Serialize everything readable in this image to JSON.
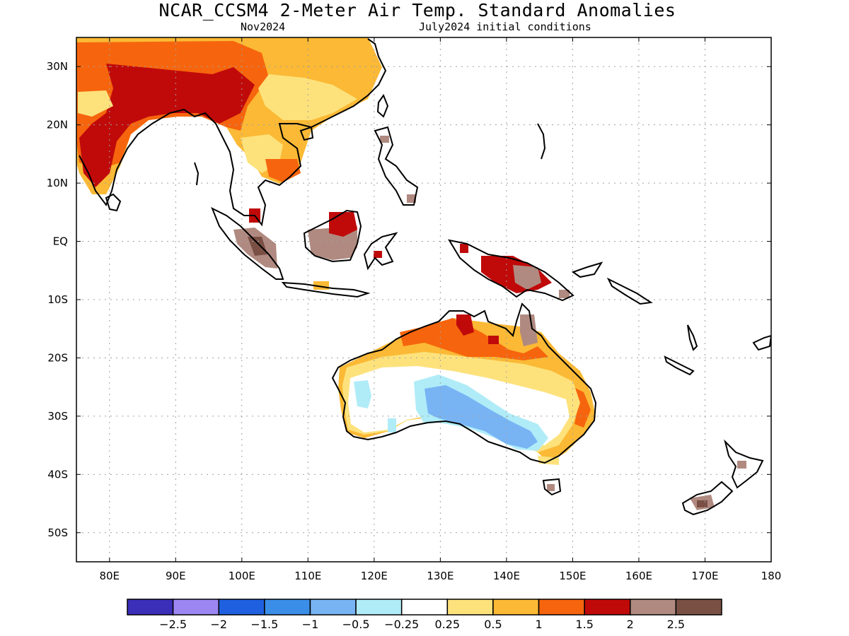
{
  "title": "NCAR_CCSM4 2-Meter Air Temp. Standard Anomalies",
  "subtitle_left": "Nov2024",
  "subtitle_right": "July2024 initial conditions",
  "map": {
    "lon_range": [
      75,
      180
    ],
    "lat_range": [
      -55,
      35
    ],
    "lat_ticks": [
      {
        "value": 30,
        "label": "30N"
      },
      {
        "value": 20,
        "label": "20N"
      },
      {
        "value": 10,
        "label": "10N"
      },
      {
        "value": 0,
        "label": "EQ"
      },
      {
        "value": -10,
        "label": "10S"
      },
      {
        "value": -20,
        "label": "20S"
      },
      {
        "value": -30,
        "label": "30S"
      },
      {
        "value": -40,
        "label": "40S"
      },
      {
        "value": -50,
        "label": "50S"
      }
    ],
    "lon_ticks": [
      {
        "value": 80,
        "label": "80E"
      },
      {
        "value": 90,
        "label": "90E"
      },
      {
        "value": 100,
        "label": "100E"
      },
      {
        "value": 110,
        "label": "110E"
      },
      {
        "value": 120,
        "label": "120E"
      },
      {
        "value": 130,
        "label": "130E"
      },
      {
        "value": 140,
        "label": "140E"
      },
      {
        "value": 150,
        "label": "150E"
      },
      {
        "value": 160,
        "label": "160E"
      },
      {
        "value": 170,
        "label": "170E"
      },
      {
        "value": 180,
        "label": "180"
      }
    ]
  },
  "colorbar": {
    "colors": [
      "#3b2eb8",
      "#9c86f2",
      "#1f60e0",
      "#3b8ee8",
      "#78b4f4",
      "#b0ecf8",
      "#ffffff",
      "#fde27c",
      "#fbb935",
      "#f6650d",
      "#c00a0a",
      "#b08a80",
      "#7a5045"
    ],
    "labels": [
      "-2.5",
      "-2",
      "-1.5",
      "-1",
      "-0.5",
      "-0.25",
      "0.25",
      "0.5",
      "1",
      "1.5",
      "2",
      "2.5"
    ]
  }
}
